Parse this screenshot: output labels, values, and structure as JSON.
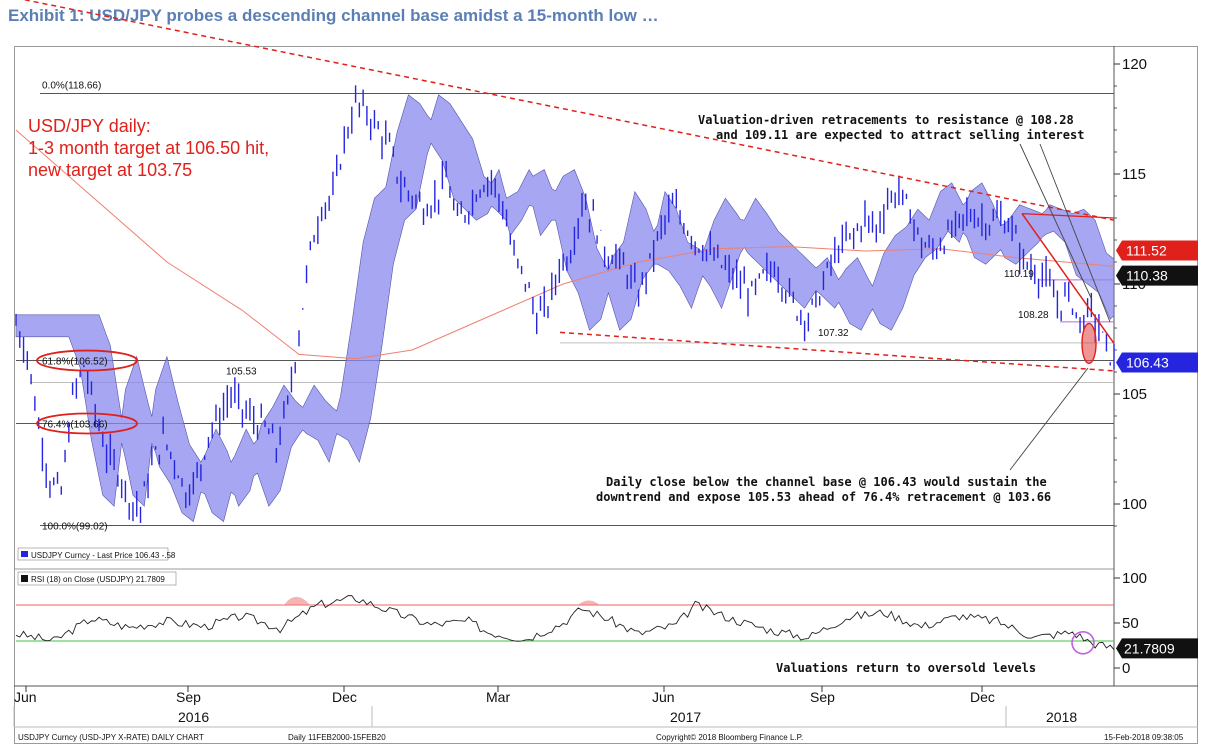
{
  "exhibit_title": "Exhibit 1: USD/JPY probes a descending channel base amidst a 15-month low …",
  "colors": {
    "title": "#5b7fb5",
    "price": "#2525e0",
    "cloud": "#8888ee",
    "trend_red": "#e0211b",
    "ma": "#f08070",
    "rsi_upper": "#f06060",
    "rsi_lower": "#40c040",
    "oversold_marker": "#c060e0"
  },
  "chart_data": [
    {
      "type": "line",
      "panel": "main",
      "title_lines": [
        "USD/JPY daily:",
        "1-3 month target at 106.50 hit,",
        "new target at 103.75"
      ],
      "ylim": [
        98,
        121
      ],
      "yticks": [
        100,
        105,
        110,
        115,
        120
      ],
      "x_months": [
        "Jun",
        "Sep",
        "Dec",
        "Mar",
        "Jun",
        "Sep",
        "Dec"
      ],
      "x_years": [
        "2016",
        "2017",
        "2018"
      ],
      "legend_price": "USDJPY Curncy - Last Price 106.43  -.58",
      "price_tags": [
        {
          "label": "111.52",
          "value": 111.52,
          "color": "#e0211b",
          "text_color": "#ffffff"
        },
        {
          "label": "110.38",
          "value": 110.38,
          "color": "#111111",
          "text_color": "#ffffff"
        },
        {
          "label": "106.43",
          "value": 106.43,
          "color": "#2525e0",
          "text_color": "#ffffff"
        }
      ],
      "fib_levels": [
        {
          "label": "0.0%(118.66)",
          "value": 118.66
        },
        {
          "label": "61.8%(106.52)",
          "value": 106.52
        },
        {
          "label": "76.4%(103.66)",
          "value": 103.66
        },
        {
          "label": "100.0%(99.02)",
          "value": 99.02
        }
      ],
      "level_labels": [
        {
          "label": "105.53",
          "value": 105.53
        },
        {
          "label": "107.32",
          "value": 107.32
        },
        {
          "label": "110.19",
          "value": 110.19
        },
        {
          "label": "108.28",
          "value": 108.28
        }
      ],
      "annotations": [
        "Valuation-driven retracements to resistance @ 108.28",
        "and 109.11 are expected to attract selling interest",
        "Daily close below the channel base @ 106.43 would sustain the",
        "downtrend and expose 105.53 ahead of 76.4% retracement @ 103.66"
      ],
      "series": [
        {
          "name": "USDJPY Curncy - Last Price",
          "approx_path": [
            [
              0,
              108.2
            ],
            [
              3,
              106.8
            ],
            [
              6,
              103.5
            ],
            [
              9,
              101.0
            ],
            [
              12,
              100.5
            ],
            [
              15,
              104.8
            ],
            [
              18,
              106.3
            ],
            [
              21,
              104.2
            ],
            [
              24,
              102.3
            ],
            [
              27,
              101.5
            ],
            [
              30,
              100.2
            ],
            [
              33,
              99.8
            ],
            [
              36,
              101.8
            ],
            [
              39,
              103.0
            ],
            [
              42,
              102.0
            ],
            [
              45,
              100.5
            ],
            [
              48,
              101.2
            ],
            [
              51,
              103.2
            ],
            [
              54,
              104.0
            ],
            [
              57,
              105.0
            ],
            [
              60,
              104.3
            ],
            [
              63,
              103.8
            ],
            [
              66,
              103.5
            ],
            [
              69,
              102.5
            ],
            [
              72,
              104.5
            ],
            [
              75,
              107.8
            ],
            [
              78,
              111.5
            ],
            [
              81,
              113.5
            ],
            [
              84,
              114.0
            ],
            [
              87,
              116.5
            ],
            [
              90,
              118.2
            ],
            [
              93,
              117.8
            ],
            [
              96,
              117.0
            ],
            [
              99,
              116.2
            ],
            [
              102,
              114.5
            ],
            [
              105,
              114.0
            ],
            [
              108,
              113.5
            ],
            [
              111,
              113.8
            ],
            [
              114,
              114.8
            ],
            [
              117,
              112.8
            ],
            [
              120,
              113.5
            ],
            [
              123,
              114.5
            ],
            [
              126,
              114.8
            ],
            [
              129,
              113.5
            ],
            [
              132,
              111.2
            ],
            [
              135,
              110.2
            ],
            [
              138,
              108.5
            ],
            [
              141,
              109.0
            ],
            [
              144,
              110.8
            ],
            [
              147,
              111.5
            ],
            [
              150,
              113.8
            ],
            [
              153,
              113.0
            ],
            [
              156,
              111.5
            ],
            [
              159,
              111.2
            ],
            [
              162,
              110.5
            ],
            [
              165,
              109.5
            ],
            [
              168,
              111.0
            ],
            [
              171,
              112.5
            ],
            [
              174,
              113.5
            ],
            [
              177,
              112.8
            ],
            [
              180,
              112.0
            ],
            [
              183,
              111.5
            ],
            [
              186,
              111.0
            ],
            [
              189,
              110.5
            ],
            [
              192,
              110.0
            ],
            [
              195,
              109.5
            ],
            [
              198,
              110.3
            ],
            [
              201,
              110.8
            ],
            [
              204,
              109.8
            ],
            [
              207,
              108.8
            ],
            [
              210,
              108.5
            ],
            [
              213,
              109.5
            ],
            [
              216,
              111.0
            ],
            [
              219,
              111.8
            ],
            [
              222,
              112.2
            ],
            [
              225,
              113.0
            ],
            [
              228,
              112.5
            ],
            [
              231,
              113.8
            ],
            [
              234,
              114.2
            ],
            [
              237,
              113.2
            ],
            [
              240,
              111.8
            ],
            [
              243,
              111.5
            ],
            [
              246,
              112.0
            ],
            [
              249,
              112.5
            ],
            [
              252,
              113.2
            ],
            [
              255,
              113.0
            ],
            [
              258,
              112.8
            ],
            [
              261,
              113.0
            ],
            [
              264,
              112.5
            ],
            [
              267,
              111.0
            ],
            [
              270,
              110.6
            ],
            [
              273,
              110.2
            ],
            [
              276,
              109.0
            ],
            [
              279,
              109.5
            ],
            [
              282,
              108.3
            ],
            [
              285,
              108.8
            ],
            [
              288,
              107.5
            ],
            [
              291,
              106.43
            ]
          ]
        },
        {
          "name": "200-day MA",
          "approx_path": [
            [
              0,
              117.0
            ],
            [
              20,
              114.0
            ],
            [
              40,
              111.0
            ],
            [
              60,
              108.8
            ],
            [
              75,
              106.8
            ],
            [
              90,
              106.6
            ],
            [
              105,
              107.0
            ],
            [
              125,
              108.5
            ],
            [
              145,
              110.0
            ],
            [
              165,
              111.0
            ],
            [
              185,
              111.6
            ],
            [
              205,
              111.7
            ],
            [
              225,
              111.5
            ],
            [
              245,
              111.6
            ],
            [
              265,
              111.2
            ],
            [
              291,
              110.8
            ]
          ]
        }
      ]
    },
    {
      "type": "line",
      "panel": "rsi",
      "legend": "RSI (18) on Close (USDJPY) 21.7809",
      "ylim": [
        -5,
        105
      ],
      "yticks": [
        0,
        50,
        100
      ],
      "reference_lines": [
        70,
        30
      ],
      "last_value_label": "21.7809",
      "last_value": 21.7809,
      "annotation": "Valuations return to oversold levels",
      "approx_path": [
        [
          0,
          38
        ],
        [
          10,
          30
        ],
        [
          20,
          55
        ],
        [
          30,
          45
        ],
        [
          40,
          52
        ],
        [
          50,
          46
        ],
        [
          60,
          58
        ],
        [
          70,
          44
        ],
        [
          80,
          70
        ],
        [
          90,
          78
        ],
        [
          100,
          62
        ],
        [
          110,
          48
        ],
        [
          120,
          52
        ],
        [
          125,
          40
        ],
        [
          135,
          32
        ],
        [
          145,
          50
        ],
        [
          150,
          66
        ],
        [
          155,
          58
        ],
        [
          165,
          38
        ],
        [
          175,
          48
        ],
        [
          180,
          70
        ],
        [
          190,
          54
        ],
        [
          200,
          42
        ],
        [
          210,
          34
        ],
        [
          220,
          56
        ],
        [
          230,
          62
        ],
        [
          240,
          46
        ],
        [
          250,
          58
        ],
        [
          260,
          52
        ],
        [
          270,
          34
        ],
        [
          280,
          40
        ],
        [
          285,
          28
        ],
        [
          291,
          21.78
        ]
      ]
    }
  ],
  "footer": {
    "left": "USDJPY Curncy (USD-JPY X-RATE) DAILY CHART",
    "period": "Daily 11FEB2000-15FEB20",
    "copyright": "Copyright© 2018 Bloomberg Finance L.P.",
    "timestamp": "15-Feb-2018 09:38:05"
  }
}
